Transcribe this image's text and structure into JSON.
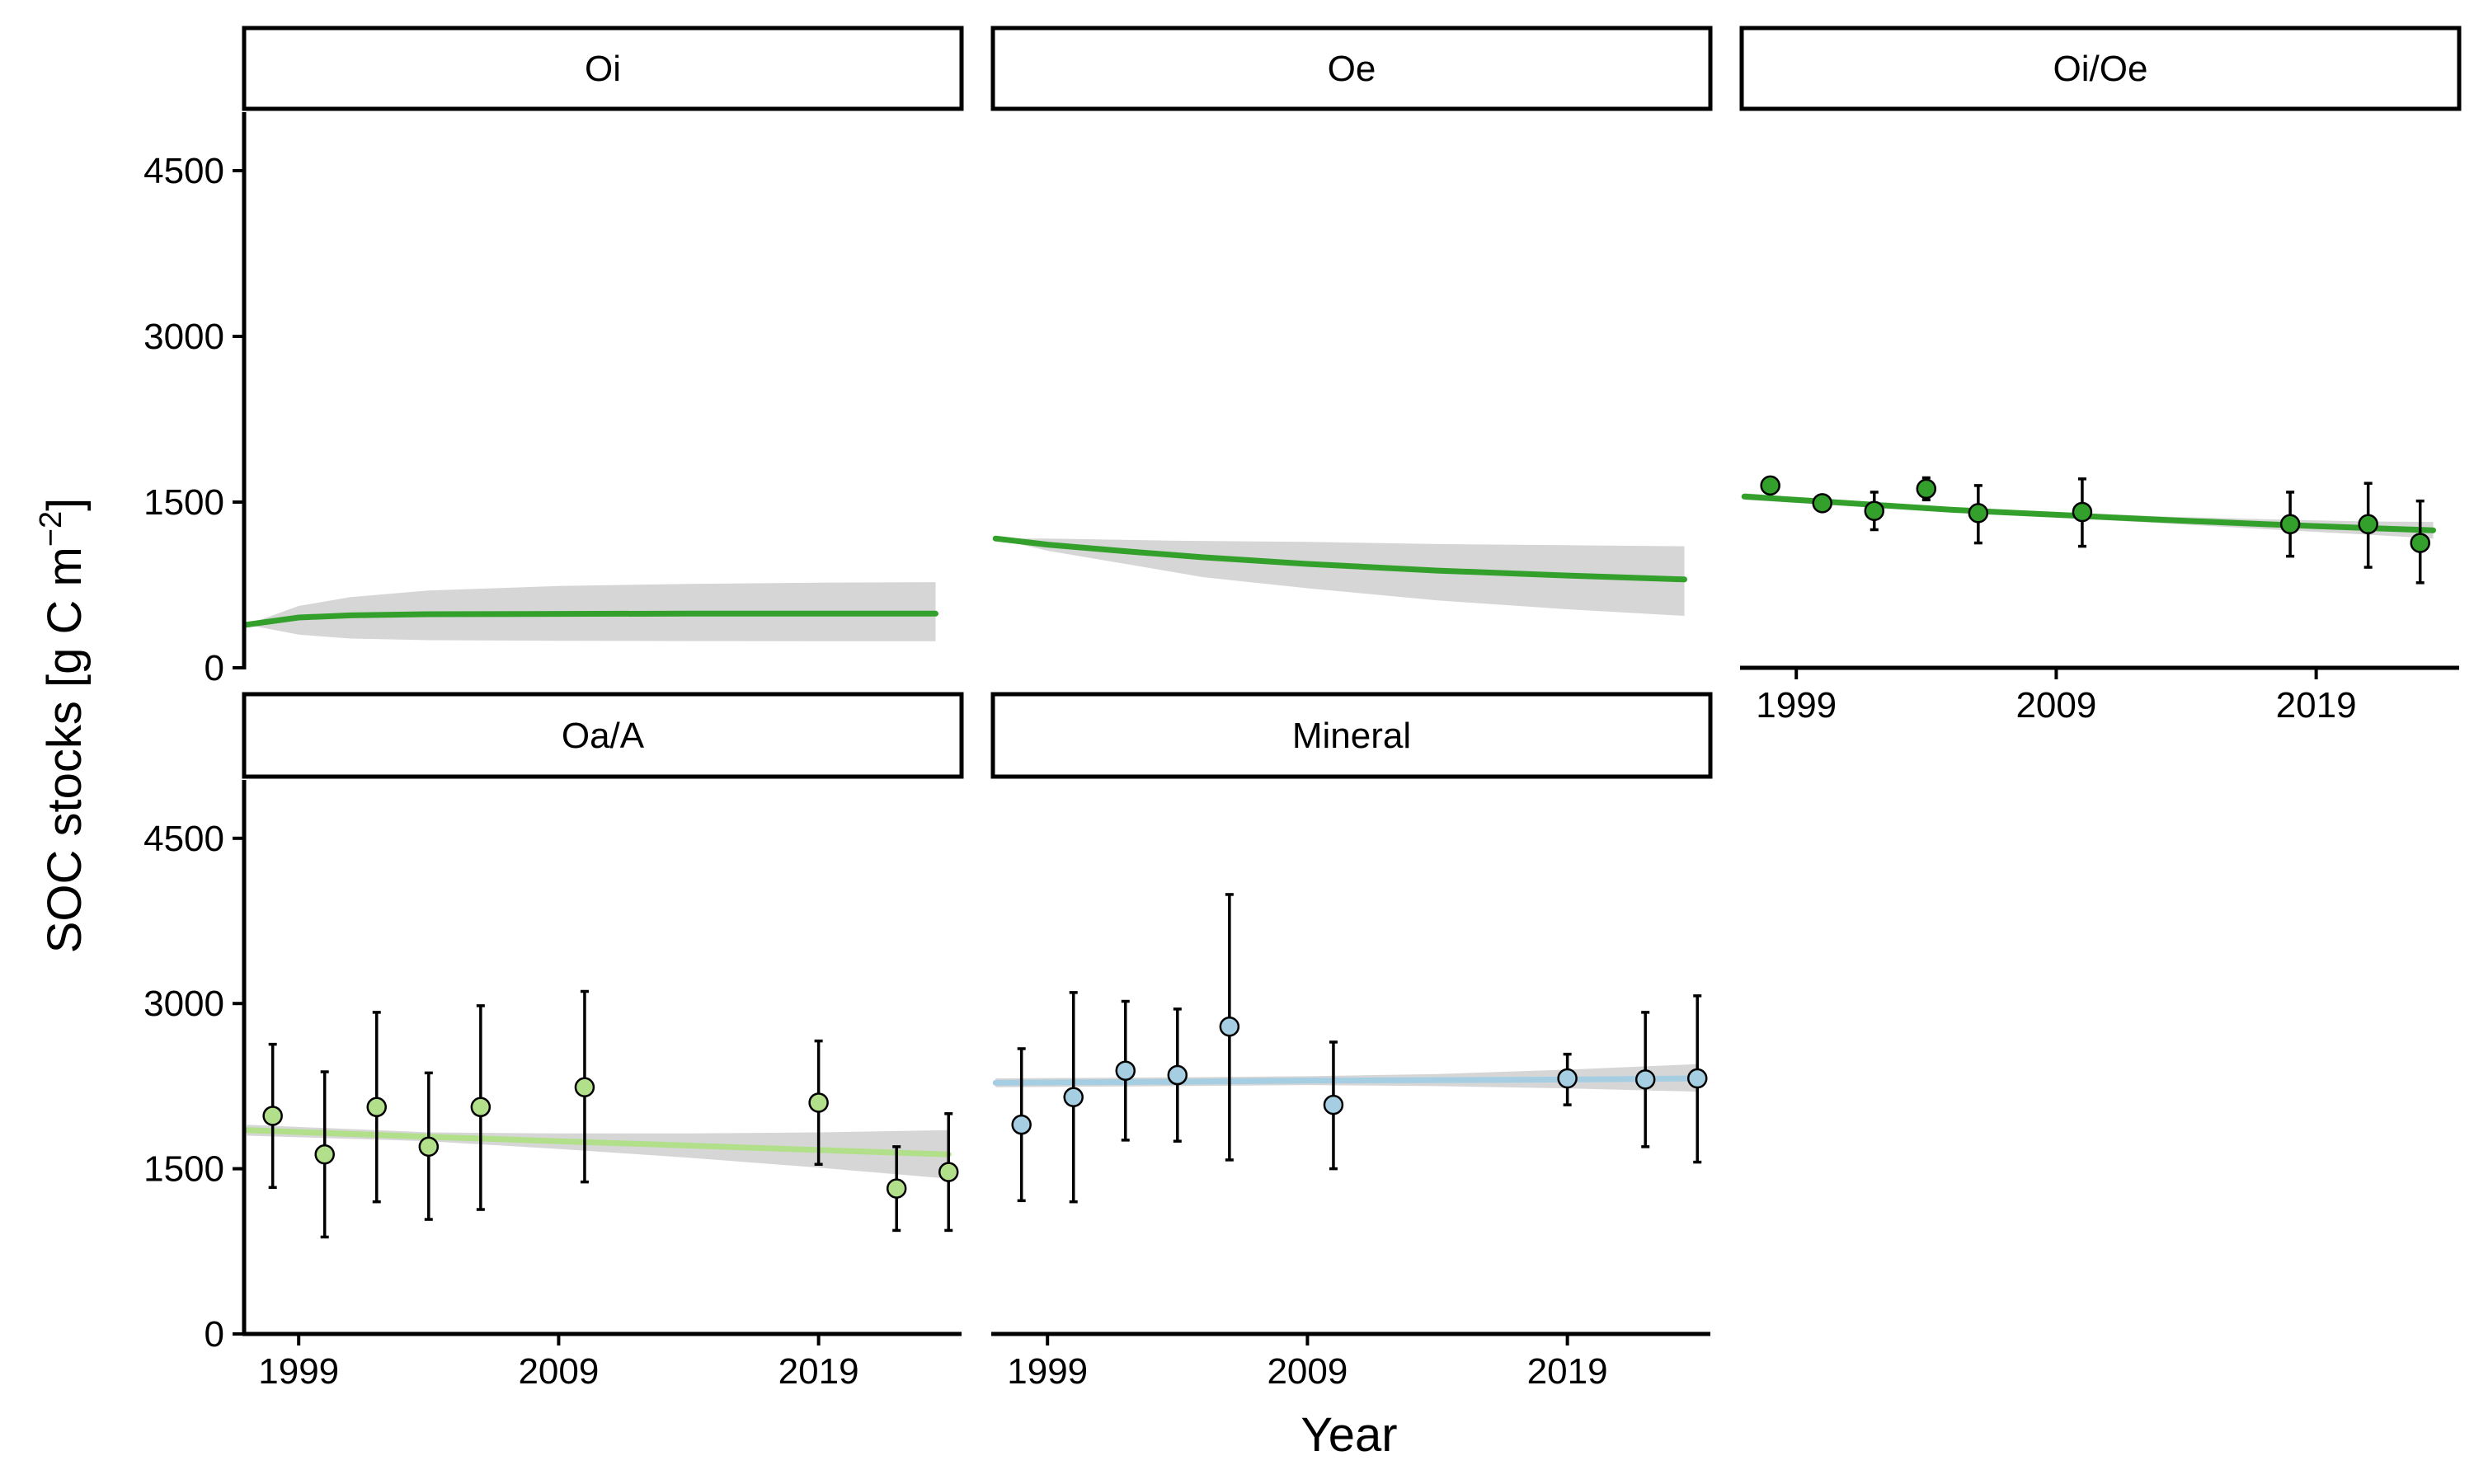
{
  "colors": {
    "ribbon": "#d6d6d6",
    "axis": "#000000",
    "strip_fill": "#ffffff"
  },
  "chart_data": {
    "type": "scatter",
    "xlabel": "Year",
    "ylabel": "SOC stocks [g C m",
    "ylabel_superscript": "−2",
    "ylabel_close": "]",
    "ylim": [
      0,
      5000
    ],
    "y_ticks": [
      "0",
      "1500",
      "3000",
      "4500"
    ],
    "y_tick_values": [
      0,
      1500,
      3000,
      4500
    ],
    "xlim": [
      1996.9,
      2024.5
    ],
    "x_ticks": [
      "1999",
      "2009",
      "2019"
    ],
    "x_tick_values": [
      1999,
      2009,
      2019
    ],
    "grid": false,
    "facets": [
      {
        "label": "Oi",
        "color": "#33a02c",
        "points": [],
        "fit": [
          [
            1997.0,
            390
          ],
          [
            1999.0,
            455
          ],
          [
            2001.0,
            475
          ],
          [
            2004.0,
            485
          ],
          [
            2009.0,
            488
          ],
          [
            2014.0,
            490
          ],
          [
            2019.0,
            490
          ],
          [
            2023.5,
            490
          ]
        ],
        "band_upper": [
          [
            1997.0,
            390
          ],
          [
            1999.0,
            560
          ],
          [
            2001.0,
            640
          ],
          [
            2004.0,
            700
          ],
          [
            2009.0,
            740
          ],
          [
            2014.0,
            760
          ],
          [
            2019.0,
            770
          ],
          [
            2023.5,
            775
          ]
        ],
        "band_lower": [
          [
            1997.0,
            390
          ],
          [
            1999.0,
            300
          ],
          [
            2001.0,
            265
          ],
          [
            2004.0,
            250
          ],
          [
            2009.0,
            245
          ],
          [
            2014.0,
            242
          ],
          [
            2019.0,
            240
          ],
          [
            2023.5,
            240
          ]
        ]
      },
      {
        "label": "Oe",
        "color": "#33a02c",
        "points": [],
        "fit": [
          [
            1997.0,
            1170
          ],
          [
            1999.0,
            1115
          ],
          [
            2002.0,
            1055
          ],
          [
            2005.0,
            1000
          ],
          [
            2009.0,
            940
          ],
          [
            2014.0,
            880
          ],
          [
            2019.0,
            835
          ],
          [
            2023.5,
            800
          ]
        ],
        "band_upper": [
          [
            1997.0,
            1170
          ],
          [
            1999.0,
            1170
          ],
          [
            2004.0,
            1150
          ],
          [
            2009.0,
            1140
          ],
          [
            2014.0,
            1120
          ],
          [
            2019.0,
            1110
          ],
          [
            2023.5,
            1100
          ]
        ],
        "band_lower": [
          [
            1997.0,
            1170
          ],
          [
            1999.0,
            1060
          ],
          [
            2002.0,
            940
          ],
          [
            2005.0,
            820
          ],
          [
            2009.0,
            720
          ],
          [
            2014.0,
            610
          ],
          [
            2019.0,
            530
          ],
          [
            2023.5,
            470
          ]
        ]
      },
      {
        "label": "Oi/Oe",
        "color": "#33a02c",
        "points": [
          {
            "x": 1998,
            "y": 1650,
            "lo": 1620,
            "hi": 1690
          },
          {
            "x": 2000,
            "y": 1490,
            "lo": 1420,
            "hi": 1540
          },
          {
            "x": 2002,
            "y": 1420,
            "lo": 1250,
            "hi": 1590
          },
          {
            "x": 2004,
            "y": 1620,
            "lo": 1520,
            "hi": 1720
          },
          {
            "x": 2006,
            "y": 1400,
            "lo": 1130,
            "hi": 1650
          },
          {
            "x": 2010,
            "y": 1410,
            "lo": 1100,
            "hi": 1710
          },
          {
            "x": 2018,
            "y": 1300,
            "lo": 1010,
            "hi": 1590
          },
          {
            "x": 2021,
            "y": 1300,
            "lo": 910,
            "hi": 1670
          },
          {
            "x": 2023,
            "y": 1130,
            "lo": 770,
            "hi": 1510
          }
        ],
        "fit": [
          [
            1997.0,
            1550
          ],
          [
            2001.0,
            1490
          ],
          [
            2005.0,
            1430
          ],
          [
            2009.0,
            1385
          ],
          [
            2013.0,
            1340
          ],
          [
            2017.0,
            1300
          ],
          [
            2021.0,
            1265
          ],
          [
            2023.5,
            1245
          ]
        ],
        "band_upper": [
          [
            1997.0,
            1580
          ],
          [
            2001.0,
            1515
          ],
          [
            2005.0,
            1455
          ],
          [
            2009.0,
            1410
          ],
          [
            2013.0,
            1370
          ],
          [
            2017.0,
            1345
          ],
          [
            2021.0,
            1325
          ],
          [
            2023.5,
            1320
          ]
        ],
        "band_lower": [
          [
            1997.0,
            1520
          ],
          [
            2001.0,
            1465
          ],
          [
            2005.0,
            1405
          ],
          [
            2009.0,
            1360
          ],
          [
            2013.0,
            1310
          ],
          [
            2017.0,
            1255
          ],
          [
            2021.0,
            1205
          ],
          [
            2023.5,
            1170
          ]
        ]
      },
      {
        "label": "Oa/A",
        "color": "#b2df8a",
        "points": [
          {
            "x": 1998,
            "y": 1980,
            "lo": 1330,
            "hi": 2630
          },
          {
            "x": 2000,
            "y": 1630,
            "lo": 880,
            "hi": 2380
          },
          {
            "x": 2002,
            "y": 2060,
            "lo": 1200,
            "hi": 2920
          },
          {
            "x": 2004,
            "y": 1700,
            "lo": 1040,
            "hi": 2370
          },
          {
            "x": 2006,
            "y": 2060,
            "lo": 1130,
            "hi": 2980
          },
          {
            "x": 2010,
            "y": 2240,
            "lo": 1380,
            "hi": 3110
          },
          {
            "x": 2019,
            "y": 2100,
            "lo": 1540,
            "hi": 2660
          },
          {
            "x": 2022,
            "y": 1320,
            "lo": 940,
            "hi": 1700
          },
          {
            "x": 2024,
            "y": 1470,
            "lo": 940,
            "hi": 2000
          }
        ],
        "fit": [
          [
            1997.0,
            1850
          ],
          [
            2004.0,
            1790
          ],
          [
            2009.0,
            1750
          ],
          [
            2014.0,
            1710
          ],
          [
            2019.0,
            1670
          ],
          [
            2024.0,
            1630
          ]
        ],
        "band_upper": [
          [
            1997.0,
            1900
          ],
          [
            2004.0,
            1830
          ],
          [
            2009.0,
            1820
          ],
          [
            2014.0,
            1820
          ],
          [
            2019.0,
            1830
          ],
          [
            2024.0,
            1850
          ]
        ],
        "band_lower": [
          [
            1997.0,
            1800
          ],
          [
            2004.0,
            1750
          ],
          [
            2009.0,
            1680
          ],
          [
            2014.0,
            1600
          ],
          [
            2019.0,
            1510
          ],
          [
            2024.0,
            1410
          ]
        ]
      },
      {
        "label": "Mineral",
        "color": "#a6cee3",
        "points": [
          {
            "x": 1998,
            "y": 1900,
            "lo": 1210,
            "hi": 2590
          },
          {
            "x": 2000,
            "y": 2150,
            "lo": 1200,
            "hi": 3100
          },
          {
            "x": 2002,
            "y": 2390,
            "lo": 1760,
            "hi": 3020
          },
          {
            "x": 2004,
            "y": 2350,
            "lo": 1750,
            "hi": 2950
          },
          {
            "x": 2006,
            "y": 2790,
            "lo": 1580,
            "hi": 3990
          },
          {
            "x": 2010,
            "y": 2080,
            "lo": 1500,
            "hi": 2650
          },
          {
            "x": 2019,
            "y": 2320,
            "lo": 2080,
            "hi": 2540
          },
          {
            "x": 2022,
            "y": 2310,
            "lo": 1700,
            "hi": 2920
          },
          {
            "x": 2024,
            "y": 2320,
            "lo": 1560,
            "hi": 3070
          }
        ],
        "fit": [
          [
            1997.0,
            2280
          ],
          [
            2004.0,
            2290
          ],
          [
            2009.0,
            2300
          ],
          [
            2014.0,
            2305
          ],
          [
            2019.0,
            2310
          ],
          [
            2024.0,
            2320
          ]
        ],
        "band_upper": [
          [
            1997.0,
            2320
          ],
          [
            2004.0,
            2330
          ],
          [
            2009.0,
            2340
          ],
          [
            2014.0,
            2360
          ],
          [
            2019.0,
            2400
          ],
          [
            2024.0,
            2450
          ]
        ],
        "band_lower": [
          [
            1997.0,
            2240
          ],
          [
            2004.0,
            2250
          ],
          [
            2009.0,
            2260
          ],
          [
            2014.0,
            2250
          ],
          [
            2019.0,
            2230
          ],
          [
            2024.0,
            2200
          ]
        ]
      }
    ]
  }
}
